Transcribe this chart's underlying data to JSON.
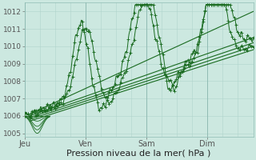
{
  "xlabel": "Pression niveau de la mer( hPa )",
  "bg_color": "#cce8e0",
  "grid_color_minor": "#b0d4cc",
  "grid_color_major": "#90bcb4",
  "line_color": "#1a6b20",
  "ylim": [
    1004.8,
    1012.5
  ],
  "day_labels": [
    "Jeu",
    "Ven",
    "Sam",
    "Dim"
  ],
  "day_positions": [
    0,
    24,
    48,
    72
  ],
  "total_hours": 90,
  "xlabel_fontsize": 8
}
